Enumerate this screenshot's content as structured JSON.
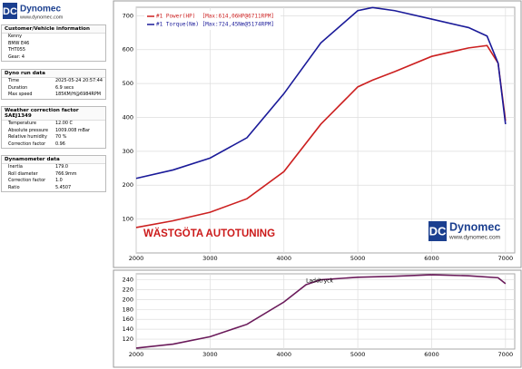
{
  "header": {
    "logo_mark": "DC",
    "brand": "Dynomec",
    "url": "www.dynomec.com"
  },
  "sidebar": {
    "sections": [
      {
        "title": "Customer/Vehicle information",
        "rows": [
          [
            "Kenny"
          ],
          [
            "BMW E46"
          ],
          [
            "THT055"
          ],
          [
            "Gear: 4"
          ]
        ]
      },
      {
        "title": "Dyno run data",
        "rows": [
          [
            "Time",
            "2025-05-24 20:57:44"
          ],
          [
            "Duration",
            "6.9 secs"
          ],
          [
            "Max speed",
            "185KM/H@6984RPM"
          ]
        ]
      },
      {
        "title": "Weather correction factor SAEJ1349",
        "rows": [
          [
            "Temperature",
            "12.00 C"
          ],
          [
            "Absolute pressure",
            "1009.008 mBar"
          ],
          [
            "Relative humidity",
            "70 %"
          ],
          [
            "Correction factor",
            "0.96"
          ]
        ]
      },
      {
        "title": "Dynamometer data",
        "rows": [
          [
            "Inertia",
            "179.0"
          ],
          [
            "Roll diameter",
            "766.9mm"
          ],
          [
            "Correction factor",
            "1.0"
          ],
          [
            "Ratio",
            "5.4507"
          ]
        ]
      }
    ]
  },
  "chart_data": [
    {
      "type": "line",
      "annotation": "WÄSTGÖTA AUTOTUNING",
      "x": [
        2000,
        2500,
        3000,
        3500,
        4000,
        4500,
        5000,
        5200,
        5500,
        6000,
        6500,
        6750,
        6900,
        7000
      ],
      "series": [
        {
          "name": "#1 Power(HP)  [Max:614,06HP@6711RPM]",
          "color": "#cc2020",
          "values": [
            75,
            95,
            120,
            160,
            240,
            380,
            490,
            510,
            535,
            580,
            605,
            612,
            560,
            390
          ]
        },
        {
          "name": "#1 Torque(Nm) [Max:724,45Nm@5174RPM]",
          "color": "#1a1a99",
          "values": [
            220,
            245,
            280,
            340,
            470,
            620,
            715,
            724,
            715,
            690,
            665,
            640,
            560,
            380
          ]
        }
      ],
      "xlim": [
        2000,
        7125
      ],
      "xticks": [
        2000,
        3000,
        4000,
        5000,
        6000,
        7000
      ],
      "ylim": [
        0,
        725
      ],
      "yticks": [
        100,
        200,
        300,
        400,
        500,
        600,
        700
      ],
      "grid": true
    },
    {
      "type": "line",
      "x": [
        2000,
        2500,
        3000,
        3500,
        4000,
        4300,
        4500,
        5000,
        5500,
        6000,
        6500,
        6900,
        7000
      ],
      "series": [
        {
          "name": "Laddtryck",
          "color": "#6a1a5a",
          "values": [
            102,
            110,
            125,
            150,
            195,
            230,
            240,
            245,
            247,
            250,
            248,
            244,
            232
          ]
        }
      ],
      "xlim": [
        2000,
        7125
      ],
      "xticks": [
        2000,
        3000,
        4000,
        5000,
        6000,
        7000
      ],
      "ylim": [
        100,
        252
      ],
      "yticks": [
        120,
        140,
        160,
        180,
        200,
        220,
        240
      ],
      "grid": true
    }
  ]
}
